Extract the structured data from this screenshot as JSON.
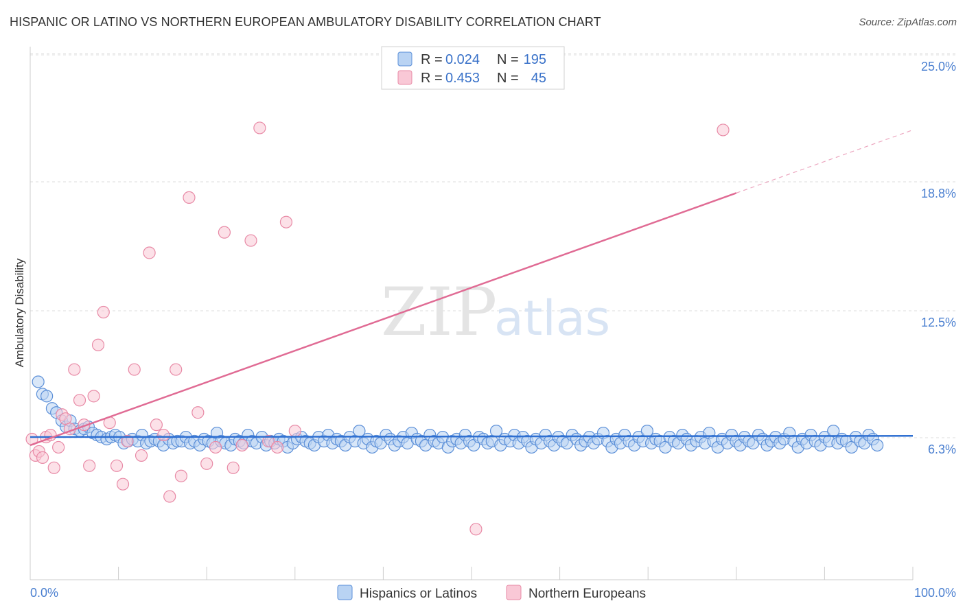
{
  "title": "HISPANIC OR LATINO VS NORTHERN EUROPEAN AMBULATORY DISABILITY CORRELATION CHART",
  "source": "Source: ZipAtlas.com",
  "watermark": {
    "zip": "ZIP",
    "atlas": "atlas"
  },
  "colors": {
    "blue_fill": "#b9d3f3",
    "blue_stroke": "#5b8fd8",
    "blue_line": "#2e6fd1",
    "pink_fill": "#f9c8d6",
    "pink_stroke": "#e88aa6",
    "pink_line": "#e06b94",
    "grid": "#dcdcdc",
    "tick_label": "#4a7fd0"
  },
  "legend": {
    "rows": [
      {
        "r_label": "R =",
        "r_value": "0.024",
        "n_label": "N =",
        "n_value": "195"
      },
      {
        "r_label": "R =",
        "r_value": "0.453",
        "n_label": "N =",
        "n_value": "45"
      }
    ]
  },
  "chart_data": {
    "type": "scatter",
    "title": "HISPANIC OR LATINO VS NORTHERN EUROPEAN AMBULATORY DISABILITY CORRELATION CHART",
    "xlabel": "",
    "ylabel": "Ambulatory Disability",
    "xlim": [
      0,
      100
    ],
    "ylim": [
      0,
      26.3
    ],
    "x_tick_labels": [
      "0.0%",
      "100.0%"
    ],
    "y_ticks": [
      {
        "value": 6.3,
        "label": "6.3%"
      },
      {
        "value": 12.5,
        "label": "12.5%"
      },
      {
        "value": 18.8,
        "label": "18.8%"
      },
      {
        "value": 25.0,
        "label": "25.0%"
      }
    ],
    "legend_labels": [
      "Hispanics or Latinos",
      "Northern Europeans"
    ],
    "series": [
      {
        "name": "Hispanics or Latinos",
        "r": 0.024,
        "n": 195,
        "trend": {
          "x0": 0,
          "y0": 6.5,
          "x1": 100,
          "y1": 6.56
        },
        "points": [
          [
            0.5,
            9.2
          ],
          [
            0.9,
            8.6
          ],
          [
            1.3,
            8.5
          ],
          [
            1.8,
            7.9
          ],
          [
            2.2,
            7.7
          ],
          [
            2.7,
            7.3
          ],
          [
            3.1,
            7.0
          ],
          [
            3.5,
            7.3
          ],
          [
            3.9,
            6.9
          ],
          [
            4.4,
            6.8
          ],
          [
            4.8,
            6.9
          ],
          [
            5.2,
            7.0
          ],
          [
            5.6,
            6.7
          ],
          [
            6.0,
            6.6
          ],
          [
            6.4,
            6.5
          ],
          [
            6.9,
            6.4
          ],
          [
            7.3,
            6.5
          ],
          [
            7.7,
            6.6
          ],
          [
            8.1,
            6.5
          ],
          [
            8.5,
            6.2
          ],
          [
            8.9,
            6.3
          ],
          [
            9.3,
            6.4
          ],
          [
            9.8,
            6.3
          ],
          [
            10.2,
            6.6
          ],
          [
            10.6,
            6.2
          ],
          [
            11.0,
            6.3
          ],
          [
            11.4,
            6.4
          ],
          [
            11.8,
            6.3
          ],
          [
            12.2,
            6.1
          ],
          [
            12.7,
            6.4
          ],
          [
            13.1,
            6.2
          ],
          [
            13.5,
            6.3
          ],
          [
            13.9,
            6.3
          ],
          [
            14.3,
            6.5
          ],
          [
            14.7,
            6.2
          ],
          [
            15.1,
            6.3
          ],
          [
            15.6,
            6.1
          ],
          [
            16.0,
            6.4
          ],
          [
            16.4,
            6.3
          ],
          [
            16.8,
            6.2
          ],
          [
            17.2,
            6.7
          ],
          [
            17.6,
            6.3
          ],
          [
            18.0,
            6.2
          ],
          [
            18.5,
            6.1
          ],
          [
            18.9,
            6.4
          ],
          [
            19.3,
            6.3
          ],
          [
            19.7,
            6.2
          ],
          [
            20.1,
            6.6
          ],
          [
            20.5,
            6.3
          ],
          [
            20.9,
            6.2
          ],
          [
            21.4,
            6.5
          ],
          [
            21.8,
            6.1
          ],
          [
            22.2,
            6.3
          ],
          [
            22.6,
            6.2
          ],
          [
            23.0,
            6.4
          ],
          [
            23.4,
            6.3
          ],
          [
            23.8,
            6.0
          ],
          [
            24.3,
            6.2
          ],
          [
            24.7,
            6.4
          ],
          [
            25.1,
            6.5
          ],
          [
            25.5,
            6.3
          ],
          [
            25.9,
            6.2
          ],
          [
            26.3,
            6.1
          ],
          [
            26.7,
            6.5
          ],
          [
            27.2,
            6.3
          ],
          [
            27.6,
            6.6
          ],
          [
            28.0,
            6.2
          ],
          [
            28.4,
            6.4
          ],
          [
            28.8,
            6.3
          ],
          [
            29.2,
            6.1
          ],
          [
            29.6,
            6.5
          ],
          [
            30.1,
            6.3
          ],
          [
            30.5,
            6.8
          ],
          [
            30.9,
            6.2
          ],
          [
            31.3,
            6.4
          ],
          [
            31.7,
            6.0
          ],
          [
            32.1,
            6.3
          ],
          [
            32.5,
            6.2
          ],
          [
            33.0,
            6.6
          ],
          [
            33.4,
            6.4
          ],
          [
            33.8,
            6.1
          ],
          [
            34.2,
            6.3
          ],
          [
            34.6,
            6.5
          ],
          [
            35.0,
            6.2
          ],
          [
            35.4,
            6.7
          ],
          [
            35.9,
            6.4
          ],
          [
            36.3,
            6.3
          ],
          [
            36.7,
            6.1
          ],
          [
            37.1,
            6.6
          ],
          [
            37.5,
            6.3
          ],
          [
            37.9,
            6.2
          ],
          [
            38.3,
            6.5
          ],
          [
            38.8,
            6.0
          ],
          [
            39.2,
            6.3
          ],
          [
            39.6,
            6.4
          ],
          [
            40.0,
            6.2
          ],
          [
            40.4,
            6.6
          ],
          [
            40.8,
            6.3
          ],
          [
            41.2,
            6.1
          ],
          [
            41.7,
            6.5
          ],
          [
            42.1,
            6.4
          ],
          [
            42.5,
            6.2
          ],
          [
            42.9,
            6.3
          ],
          [
            43.3,
            6.8
          ],
          [
            43.7,
            6.1
          ],
          [
            44.1,
            6.4
          ],
          [
            44.6,
            6.3
          ],
          [
            45.0,
            6.6
          ],
          [
            45.4,
            6.2
          ],
          [
            45.8,
            6.5
          ],
          [
            46.2,
            6.3
          ],
          [
            46.6,
            6.0
          ],
          [
            47.0,
            6.4
          ],
          [
            47.5,
            6.2
          ],
          [
            47.9,
            6.6
          ],
          [
            48.3,
            6.3
          ],
          [
            48.7,
            6.1
          ],
          [
            49.1,
            6.5
          ],
          [
            49.5,
            6.3
          ],
          [
            49.9,
            6.2
          ],
          [
            50.4,
            6.6
          ],
          [
            50.8,
            6.4
          ],
          [
            51.2,
            6.1
          ],
          [
            51.6,
            6.3
          ],
          [
            52.0,
            6.5
          ],
          [
            52.4,
            6.2
          ],
          [
            52.8,
            6.4
          ],
          [
            53.3,
            6.7
          ],
          [
            53.7,
            6.3
          ],
          [
            54.1,
            6.0
          ],
          [
            54.5,
            6.4
          ],
          [
            54.9,
            6.2
          ],
          [
            55.3,
            6.6
          ],
          [
            55.7,
            6.3
          ],
          [
            56.2,
            6.1
          ],
          [
            56.6,
            6.5
          ],
          [
            57.0,
            6.3
          ],
          [
            57.4,
            6.8
          ],
          [
            57.8,
            6.2
          ],
          [
            58.2,
            6.4
          ],
          [
            58.6,
            6.3
          ],
          [
            59.1,
            6.0
          ],
          [
            59.5,
            6.5
          ],
          [
            59.9,
            6.3
          ],
          [
            60.3,
            6.2
          ],
          [
            60.7,
            6.6
          ],
          [
            61.1,
            6.4
          ],
          [
            61.5,
            6.1
          ],
          [
            62.0,
            6.3
          ],
          [
            62.4,
            6.5
          ],
          [
            62.8,
            6.2
          ],
          [
            63.2,
            6.7
          ],
          [
            63.6,
            6.3
          ],
          [
            64.0,
            6.0
          ],
          [
            64.4,
            6.4
          ],
          [
            64.9,
            6.2
          ],
          [
            65.3,
            6.6
          ],
          [
            65.7,
            6.3
          ],
          [
            66.1,
            6.1
          ],
          [
            66.5,
            6.5
          ],
          [
            66.9,
            6.3
          ],
          [
            67.3,
            6.2
          ],
          [
            67.8,
            6.6
          ],
          [
            68.2,
            6.4
          ],
          [
            68.6,
            6.1
          ],
          [
            69.0,
            6.3
          ],
          [
            69.4,
            6.5
          ],
          [
            69.8,
            6.2
          ],
          [
            70.2,
            6.4
          ],
          [
            70.7,
            6.7
          ],
          [
            71.1,
            6.3
          ],
          [
            71.5,
            6.0
          ],
          [
            71.9,
            6.4
          ],
          [
            72.3,
            6.2
          ],
          [
            72.7,
            6.6
          ],
          [
            73.1,
            6.3
          ],
          [
            73.6,
            6.1
          ],
          [
            74.0,
            6.5
          ],
          [
            74.4,
            6.3
          ],
          [
            74.8,
            6.8
          ],
          [
            75.2,
            6.2
          ],
          [
            75.6,
            6.4
          ],
          [
            76.0,
            6.3
          ],
          [
            76.5,
            6.0
          ],
          [
            76.9,
            6.5
          ],
          [
            77.3,
            6.3
          ],
          [
            77.7,
            6.2
          ],
          [
            78.1,
            6.6
          ],
          [
            78.5,
            6.4
          ],
          [
            78.9,
            6.1
          ]
        ]
      },
      {
        "name": "Northern Europeans",
        "r": 0.453,
        "n": 45,
        "trend": {
          "x0": 0,
          "y0": 6.1,
          "x1": 100,
          "y1": 21.5,
          "solid_until_x": 80
        },
        "points": [
          [
            0.2,
            6.4
          ],
          [
            0.6,
            5.6
          ],
          [
            1.0,
            5.8
          ],
          [
            1.4,
            5.5
          ],
          [
            1.8,
            6.5
          ],
          [
            2.3,
            6.6
          ],
          [
            2.7,
            5.0
          ],
          [
            3.2,
            6.0
          ],
          [
            3.6,
            7.6
          ],
          [
            4.0,
            7.4
          ],
          [
            4.5,
            6.9
          ],
          [
            5.0,
            9.8
          ],
          [
            5.6,
            8.3
          ],
          [
            6.1,
            7.1
          ],
          [
            6.7,
            5.1
          ],
          [
            7.2,
            8.5
          ],
          [
            7.7,
            11.0
          ],
          [
            8.3,
            12.6
          ],
          [
            9.0,
            7.2
          ],
          [
            9.8,
            5.1
          ],
          [
            10.5,
            4.2
          ],
          [
            11.0,
            6.3
          ],
          [
            11.8,
            9.8
          ],
          [
            12.6,
            5.6
          ],
          [
            13.5,
            15.5
          ],
          [
            14.3,
            7.1
          ],
          [
            15.1,
            6.6
          ],
          [
            15.8,
            3.6
          ],
          [
            16.5,
            9.8
          ],
          [
            17.1,
            4.6
          ],
          [
            18.0,
            18.2
          ],
          [
            19.0,
            7.7
          ],
          [
            20.0,
            5.2
          ],
          [
            21.0,
            6.0
          ],
          [
            22.0,
            16.5
          ],
          [
            23.0,
            5.0
          ],
          [
            24.0,
            6.1
          ],
          [
            25.0,
            16.1
          ],
          [
            26.0,
            21.6
          ],
          [
            27.0,
            6.3
          ],
          [
            28.0,
            6.0
          ],
          [
            29.0,
            17.0
          ],
          [
            30.0,
            6.8
          ],
          [
            50.5,
            2.0
          ],
          [
            78.5,
            21.5
          ]
        ]
      }
    ]
  }
}
